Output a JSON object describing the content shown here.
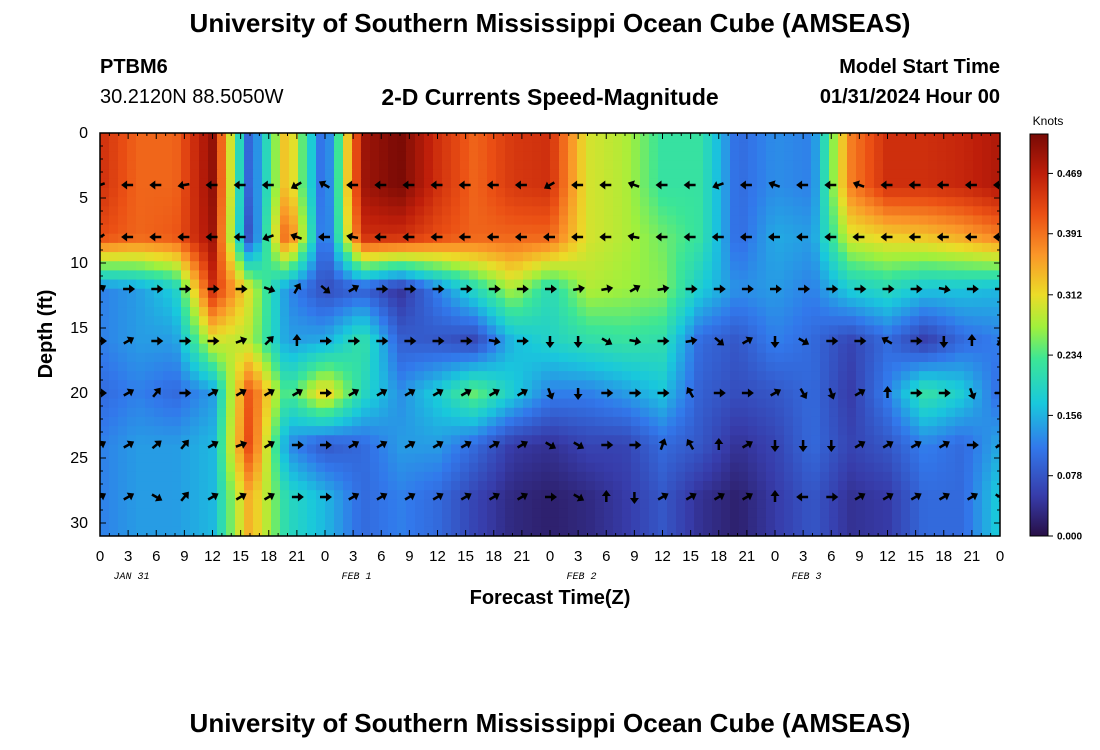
{
  "header": {
    "title": "University of Southern Mississippi Ocean Cube (AMSEAS)",
    "station_id": "PTBM6",
    "station_coords": "30.2120N  88.5050W",
    "plot_title": "2-D Currents Speed-Magnitude",
    "start_label": "Model Start Time",
    "start_value": "01/31/2024 Hour 00"
  },
  "footer": {
    "title": "University of Southern Mississippi Ocean Cube (AMSEAS)"
  },
  "chart_data": {
    "type": "heatmap",
    "xlabel": "Forecast Time(Z)",
    "ylabel": "Depth (ft)",
    "colorbar_label": "Knots",
    "colorbar_ticks": [
      "0.000",
      "0.078",
      "0.156",
      "0.234",
      "0.312",
      "0.391",
      "0.469"
    ],
    "colorbar_range": [
      0,
      0.52
    ],
    "x_hours_range": [
      0,
      96
    ],
    "x_tick_labels": [
      "0",
      "3",
      "6",
      "9",
      "12",
      "15",
      "18",
      "21",
      "0",
      "3",
      "6",
      "9",
      "12",
      "15",
      "18",
      "21",
      "0",
      "3",
      "6",
      "9",
      "12",
      "15",
      "18",
      "21",
      "0",
      "3",
      "6",
      "9",
      "12",
      "15",
      "18",
      "21",
      "0"
    ],
    "date_labels": [
      "JAN 31",
      "FEB 1",
      "FEB 2",
      "FEB 3"
    ],
    "y_ticks": [
      0,
      5,
      10,
      15,
      20,
      25,
      30
    ],
    "ylim": [
      0,
      31
    ],
    "y_inverted": true,
    "depth_levels_ft": [
      4,
      8,
      12,
      16,
      20,
      24,
      28
    ],
    "speed_knots_by_depth": [
      [
        0.45,
        0.4,
        0.4,
        0.5,
        0.08,
        0.35,
        0.08,
        0.49,
        0.52,
        0.45,
        0.4,
        0.44,
        0.45,
        0.3,
        0.28,
        0.22,
        0.22,
        0.1,
        0.13,
        0.12,
        0.38,
        0.45,
        0.45,
        0.46,
        0.48
      ],
      [
        0.42,
        0.4,
        0.41,
        0.49,
        0.06,
        0.42,
        0.08,
        0.45,
        0.45,
        0.42,
        0.4,
        0.4,
        0.4,
        0.3,
        0.28,
        0.25,
        0.22,
        0.1,
        0.15,
        0.14,
        0.3,
        0.32,
        0.33,
        0.35,
        0.38
      ],
      [
        0.12,
        0.14,
        0.18,
        0.45,
        0.3,
        0.13,
        0.07,
        0.09,
        0.04,
        0.12,
        0.2,
        0.28,
        0.2,
        0.28,
        0.27,
        0.26,
        0.18,
        0.13,
        0.14,
        0.12,
        0.18,
        0.2,
        0.17,
        0.17,
        0.16
      ],
      [
        0.12,
        0.14,
        0.14,
        0.3,
        0.28,
        0.14,
        0.15,
        0.22,
        0.09,
        0.08,
        0.06,
        0.16,
        0.19,
        0.21,
        0.22,
        0.21,
        0.1,
        0.08,
        0.12,
        0.1,
        0.06,
        0.1,
        0.05,
        0.1,
        0.12
      ],
      [
        0.1,
        0.12,
        0.1,
        0.14,
        0.42,
        0.22,
        0.33,
        0.2,
        0.13,
        0.18,
        0.25,
        0.18,
        0.12,
        0.12,
        0.14,
        0.17,
        0.09,
        0.07,
        0.08,
        0.1,
        0.05,
        0.12,
        0.22,
        0.18,
        0.1
      ],
      [
        0.12,
        0.14,
        0.14,
        0.16,
        0.43,
        0.13,
        0.08,
        0.1,
        0.14,
        0.14,
        0.1,
        0.05,
        0.04,
        0.06,
        0.06,
        0.1,
        0.08,
        0.04,
        0.06,
        0.1,
        0.06,
        0.08,
        0.12,
        0.1,
        0.15
      ],
      [
        0.12,
        0.14,
        0.14,
        0.16,
        0.35,
        0.2,
        0.16,
        0.1,
        0.12,
        0.1,
        0.06,
        0.03,
        0.02,
        0.03,
        0.05,
        0.08,
        0.04,
        0.02,
        0.05,
        0.08,
        0.04,
        0.05,
        0.1,
        0.1,
        0.18
      ]
    ],
    "arrow_hours": [
      0,
      3,
      6,
      9,
      12,
      15,
      18,
      21,
      24,
      27,
      30,
      33,
      36,
      39,
      42,
      45,
      48,
      51,
      54,
      57,
      60,
      63,
      66,
      69,
      72,
      75,
      78,
      81,
      84,
      87,
      90,
      93,
      96
    ],
    "direction_deg_by_depth": [
      [
        250,
        270,
        270,
        260,
        270,
        270,
        270,
        240,
        300,
        270,
        270,
        270,
        270,
        270,
        270,
        270,
        240,
        270,
        270,
        290,
        270,
        270,
        250,
        270,
        290,
        270,
        270,
        290,
        270,
        270,
        270,
        270,
        270
      ],
      [
        240,
        270,
        270,
        270,
        270,
        270,
        250,
        290,
        270,
        280,
        270,
        270,
        270,
        270,
        270,
        270,
        270,
        270,
        270,
        280,
        270,
        270,
        270,
        270,
        270,
        270,
        270,
        270,
        270,
        270,
        270,
        270,
        270
      ],
      [
        60,
        90,
        90,
        90,
        90,
        90,
        110,
        30,
        130,
        60,
        90,
        90,
        90,
        90,
        90,
        90,
        90,
        80,
        80,
        60,
        80,
        90,
        90,
        90,
        90,
        90,
        90,
        90,
        90,
        90,
        100,
        90,
        90
      ],
      [
        90,
        60,
        90,
        90,
        90,
        70,
        45,
        0,
        90,
        90,
        90,
        90,
        90,
        90,
        100,
        90,
        180,
        180,
        120,
        100,
        90,
        80,
        130,
        60,
        180,
        120,
        90,
        90,
        300,
        90,
        180,
        0,
        30
      ],
      [
        90,
        60,
        40,
        90,
        60,
        60,
        60,
        60,
        90,
        60,
        60,
        60,
        60,
        60,
        60,
        60,
        160,
        180,
        90,
        90,
        90,
        330,
        90,
        90,
        60,
        150,
        160,
        60,
        0,
        90,
        90,
        160,
        90
      ],
      [
        60,
        60,
        50,
        40,
        60,
        70,
        60,
        90,
        90,
        60,
        60,
        60,
        60,
        60,
        60,
        60,
        120,
        120,
        90,
        90,
        20,
        330,
        0,
        60,
        180,
        180,
        180,
        60,
        60,
        60,
        60,
        90,
        60
      ],
      [
        60,
        60,
        120,
        40,
        60,
        60,
        60,
        90,
        90,
        60,
        60,
        60,
        60,
        60,
        60,
        60,
        90,
        120,
        0,
        180,
        60,
        60,
        60,
        60,
        0,
        270,
        90,
        60,
        60,
        60,
        60,
        60,
        120
      ]
    ]
  }
}
